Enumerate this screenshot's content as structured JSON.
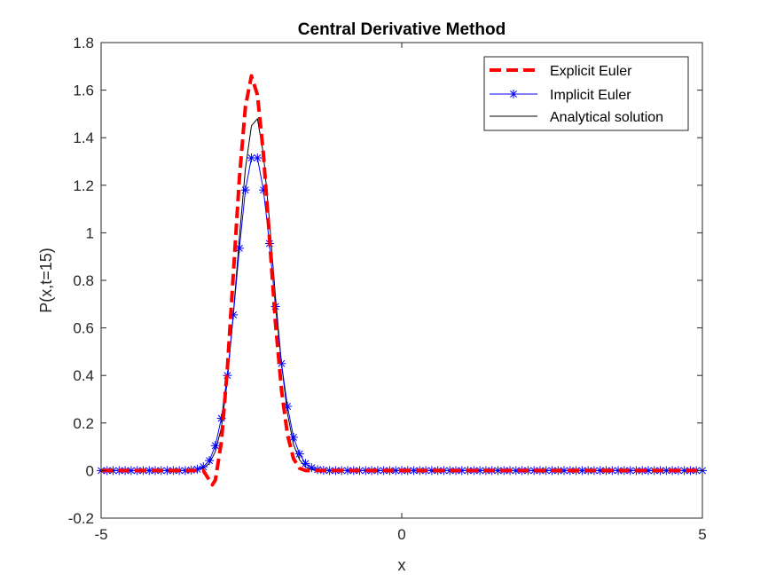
{
  "chart_data": {
    "type": "line",
    "title": "Central Derivative Method",
    "xlabel": "x",
    "ylabel": "P(x,t=15)",
    "xlim": [
      -5,
      5
    ],
    "ylim": [
      -0.2,
      1.8
    ],
    "xticks": [
      "-5",
      "0",
      "5"
    ],
    "yticks": [
      "-0.2",
      "0",
      "0.2",
      "0.4",
      "0.6",
      "0.8",
      "1",
      "1.2",
      "1.4",
      "1.6",
      "1.8"
    ],
    "grid": false,
    "legend_position": "top-right",
    "series": [
      {
        "name": "Explicit Euler",
        "color": "#ff0000",
        "style": "dashed-thick",
        "points": [
          [
            -5,
            0
          ],
          [
            -4.5,
            0
          ],
          [
            -4,
            0
          ],
          [
            -3.5,
            0
          ],
          [
            -3.3,
            0.0
          ],
          [
            -3.2,
            -0.04
          ],
          [
            -3.15,
            -0.06
          ],
          [
            -3.1,
            -0.04
          ],
          [
            -3.0,
            0.12
          ],
          [
            -2.9,
            0.43
          ],
          [
            -2.8,
            0.83
          ],
          [
            -2.7,
            1.23
          ],
          [
            -2.6,
            1.53
          ],
          [
            -2.5,
            1.66
          ],
          [
            -2.4,
            1.58
          ],
          [
            -2.3,
            1.33
          ],
          [
            -2.2,
            0.98
          ],
          [
            -2.1,
            0.62
          ],
          [
            -2.0,
            0.34
          ],
          [
            -1.9,
            0.15
          ],
          [
            -1.8,
            0.05
          ],
          [
            -1.7,
            0.01
          ],
          [
            -1.6,
            0
          ],
          [
            -1,
            0
          ],
          [
            0,
            0
          ],
          [
            1,
            0
          ],
          [
            2,
            0
          ],
          [
            3,
            0
          ],
          [
            4,
            0
          ],
          [
            5,
            0
          ]
        ]
      },
      {
        "name": "Implicit Euler",
        "color": "#0000ff",
        "marker": "asterisk",
        "points": [
          [
            -5,
            0
          ],
          [
            -4.9,
            0
          ],
          [
            -4.8,
            0
          ],
          [
            -4.7,
            0
          ],
          [
            -4.6,
            0
          ],
          [
            -4.5,
            0
          ],
          [
            -4.4,
            0
          ],
          [
            -4.3,
            0
          ],
          [
            -4.2,
            0
          ],
          [
            -4.1,
            0
          ],
          [
            -4.0,
            0
          ],
          [
            -3.9,
            0
          ],
          [
            -3.8,
            0
          ],
          [
            -3.7,
            0
          ],
          [
            -3.6,
            0
          ],
          [
            -3.5,
            0.002
          ],
          [
            -3.4,
            0.006
          ],
          [
            -3.3,
            0.016
          ],
          [
            -3.2,
            0.042
          ],
          [
            -3.1,
            0.105
          ],
          [
            -3.0,
            0.22
          ],
          [
            -2.9,
            0.4
          ],
          [
            -2.8,
            0.655
          ],
          [
            -2.7,
            0.935
          ],
          [
            -2.6,
            1.18
          ],
          [
            -2.5,
            1.315
          ],
          [
            -2.4,
            1.315
          ],
          [
            -2.3,
            1.18
          ],
          [
            -2.2,
            0.955
          ],
          [
            -2.1,
            0.69
          ],
          [
            -2.0,
            0.45
          ],
          [
            -1.9,
            0.27
          ],
          [
            -1.8,
            0.14
          ],
          [
            -1.7,
            0.07
          ],
          [
            -1.6,
            0.03
          ],
          [
            -1.5,
            0.012
          ],
          [
            -1.4,
            0.004
          ],
          [
            -1.3,
            0.001
          ],
          [
            -1.2,
            0
          ],
          [
            -1.1,
            0
          ],
          [
            -1.0,
            0
          ],
          [
            -0.9,
            0
          ],
          [
            -0.8,
            0
          ],
          [
            -0.7,
            0
          ],
          [
            -0.6,
            0
          ],
          [
            -0.5,
            0
          ],
          [
            -0.4,
            0
          ],
          [
            -0.3,
            0
          ],
          [
            -0.2,
            0
          ],
          [
            -0.1,
            0
          ],
          [
            0,
            0
          ],
          [
            0.1,
            0
          ],
          [
            0.2,
            0
          ],
          [
            0.3,
            0
          ],
          [
            0.4,
            0
          ],
          [
            0.5,
            0
          ],
          [
            0.6,
            0
          ],
          [
            0.7,
            0
          ],
          [
            0.8,
            0
          ],
          [
            0.9,
            0
          ],
          [
            1.0,
            0
          ],
          [
            1.1,
            0
          ],
          [
            1.2,
            0
          ],
          [
            1.3,
            0
          ],
          [
            1.4,
            0
          ],
          [
            1.5,
            0
          ],
          [
            1.6,
            0
          ],
          [
            1.7,
            0
          ],
          [
            1.8,
            0
          ],
          [
            1.9,
            0
          ],
          [
            2.0,
            0
          ],
          [
            2.1,
            0
          ],
          [
            2.2,
            0
          ],
          [
            2.3,
            0
          ],
          [
            2.4,
            0
          ],
          [
            2.5,
            0
          ],
          [
            2.6,
            0
          ],
          [
            2.7,
            0
          ],
          [
            2.8,
            0
          ],
          [
            2.9,
            0
          ],
          [
            3.0,
            0
          ],
          [
            3.1,
            0
          ],
          [
            3.2,
            0
          ],
          [
            3.3,
            0
          ],
          [
            3.4,
            0
          ],
          [
            3.5,
            0
          ],
          [
            3.6,
            0
          ],
          [
            3.7,
            0
          ],
          [
            3.8,
            0
          ],
          [
            3.9,
            0
          ],
          [
            4.0,
            0
          ],
          [
            4.1,
            0
          ],
          [
            4.2,
            0
          ],
          [
            4.3,
            0
          ],
          [
            4.4,
            0
          ],
          [
            4.5,
            0
          ],
          [
            4.6,
            0
          ],
          [
            4.7,
            0
          ],
          [
            4.8,
            0
          ],
          [
            4.9,
            0
          ],
          [
            5.0,
            0
          ]
        ]
      },
      {
        "name": "Analytical solution",
        "color": "#000000",
        "points": [
          [
            -5,
            0
          ],
          [
            -4,
            0
          ],
          [
            -3.5,
            0.001
          ],
          [
            -3.4,
            0.003
          ],
          [
            -3.3,
            0.01
          ],
          [
            -3.2,
            0.03
          ],
          [
            -3.1,
            0.08
          ],
          [
            -3.0,
            0.18
          ],
          [
            -2.9,
            0.38
          ],
          [
            -2.8,
            0.66
          ],
          [
            -2.7,
            0.98
          ],
          [
            -2.6,
            1.27
          ],
          [
            -2.5,
            1.45
          ],
          [
            -2.4,
            1.48
          ],
          [
            -2.3,
            1.33
          ],
          [
            -2.2,
            1.05
          ],
          [
            -2.1,
            0.73
          ],
          [
            -2.0,
            0.45
          ],
          [
            -1.9,
            0.24
          ],
          [
            -1.8,
            0.11
          ],
          [
            -1.7,
            0.045
          ],
          [
            -1.6,
            0.015
          ],
          [
            -1.5,
            0.004
          ],
          [
            -1.4,
            0
          ],
          [
            -1,
            0
          ],
          [
            0,
            0
          ],
          [
            1,
            0
          ],
          [
            2,
            0
          ],
          [
            3,
            0
          ],
          [
            4,
            0
          ],
          [
            5,
            0
          ]
        ]
      }
    ]
  }
}
